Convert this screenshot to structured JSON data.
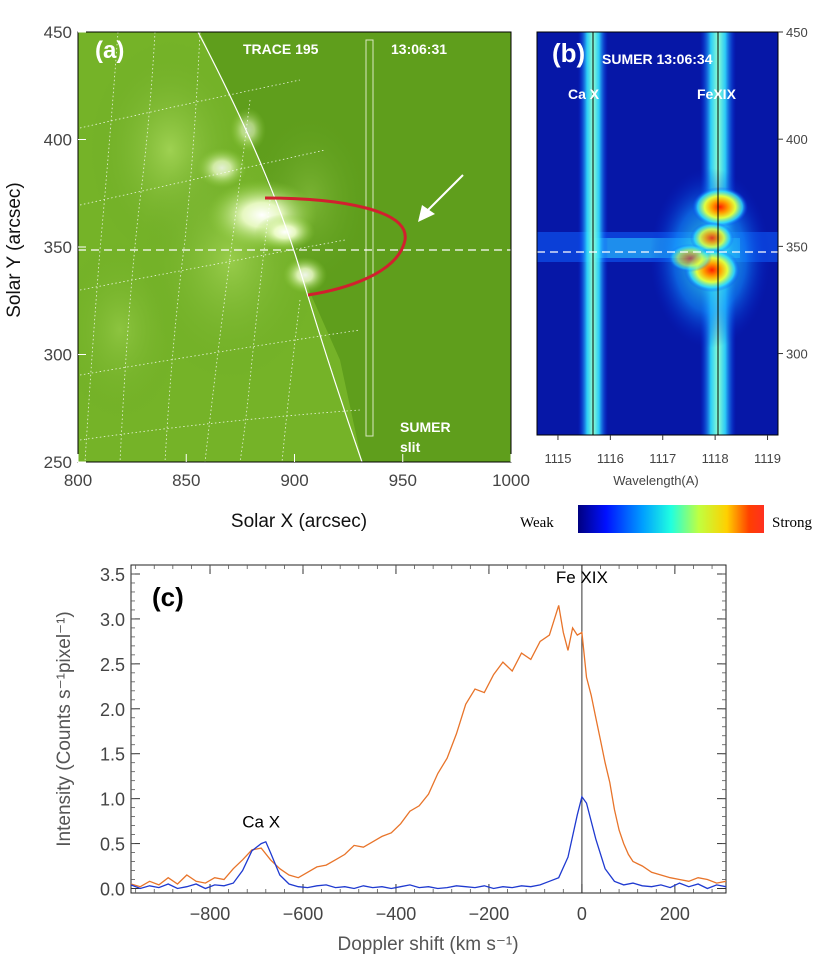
{
  "panel_a": {
    "panel_label": "(a)",
    "instrument": "TRACE 195",
    "time": "13:06:31",
    "slit_label_1": "SUMER",
    "slit_label_2": "slit",
    "xlabel": "Solar X  (arcsec)",
    "ylabel": "Solar Y  (arcsec)",
    "xticks": [
      "800",
      "850",
      "900",
      "950",
      "1000"
    ],
    "yticks": [
      "250",
      "300",
      "350",
      "400",
      "450"
    ],
    "xlim": [
      800,
      1000
    ],
    "ylim": [
      250,
      450
    ],
    "colors": {
      "background": "#5f9e1c",
      "loop": "#d1202e",
      "arrow": "#ffffff"
    }
  },
  "panel_b": {
    "panel_label": "(b)",
    "title": "SUMER 13:06:34",
    "line_left": "Ca X",
    "line_right": "FeXIX",
    "xlabel": "Wavelength(A)",
    "xticks": [
      "1115",
      "1116",
      "1117",
      "1118",
      "1119"
    ],
    "yticks": [
      "300",
      "350",
      "400",
      "450"
    ],
    "colorbar": {
      "low": "Weak",
      "high": "Strong"
    }
  },
  "chart_data": {
    "type": "line",
    "panel_label": "(c)",
    "xlabel": "Doppler shift (km s⁻¹)",
    "ylabel": "Intensity (Counts s⁻¹pixel⁻¹)",
    "xlim": [
      -970,
      310
    ],
    "ylim": [
      -0.05,
      3.6
    ],
    "xticks": [
      -800,
      -600,
      -400,
      -200,
      0,
      200
    ],
    "yticks": [
      0.0,
      0.5,
      1.0,
      1.5,
      2.0,
      2.5,
      3.0,
      3.5
    ],
    "xtick_labels": [
      "−800",
      "−600",
      "−400",
      "−200",
      "0",
      "200"
    ],
    "ytick_labels": [
      "0.0",
      "0.5",
      "1.0",
      "1.5",
      "2.0",
      "2.5",
      "3.0",
      "3.5"
    ],
    "annotations": [
      {
        "text": "Ca X",
        "x": -690,
        "y": 0.68
      },
      {
        "text": "Fe XIX",
        "x": 0,
        "y": 3.4
      }
    ],
    "vline_x": 0,
    "series": [
      {
        "color": "#e8742a",
        "x": [
          -970,
          -950,
          -930,
          -910,
          -890,
          -870,
          -850,
          -830,
          -810,
          -790,
          -770,
          -750,
          -730,
          -710,
          -690,
          -670,
          -650,
          -630,
          -610,
          -590,
          -570,
          -550,
          -530,
          -510,
          -490,
          -470,
          -450,
          -430,
          -410,
          -390,
          -370,
          -350,
          -330,
          -310,
          -290,
          -270,
          -250,
          -230,
          -210,
          -190,
          -170,
          -150,
          -130,
          -110,
          -90,
          -70,
          -50,
          -40,
          -30,
          -20,
          -10,
          0,
          10,
          20,
          30,
          40,
          50,
          60,
          70,
          80,
          90,
          100,
          110,
          130,
          150,
          170,
          190,
          210,
          230,
          250,
          270,
          290,
          310
        ],
        "y": [
          0.05,
          0.02,
          0.08,
          0.04,
          0.12,
          0.05,
          0.15,
          0.08,
          0.06,
          0.12,
          0.1,
          0.22,
          0.32,
          0.43,
          0.45,
          0.32,
          0.22,
          0.15,
          0.12,
          0.18,
          0.24,
          0.26,
          0.32,
          0.38,
          0.48,
          0.46,
          0.52,
          0.58,
          0.62,
          0.72,
          0.86,
          0.92,
          1.05,
          1.28,
          1.45,
          1.72,
          2.05,
          2.22,
          2.18,
          2.38,
          2.52,
          2.42,
          2.62,
          2.55,
          2.75,
          2.82,
          3.15,
          2.85,
          2.65,
          2.9,
          2.82,
          2.85,
          2.35,
          2.15,
          1.9,
          1.65,
          1.4,
          1.18,
          0.88,
          0.65,
          0.5,
          0.38,
          0.3,
          0.25,
          0.18,
          0.15,
          0.12,
          0.1,
          0.08,
          0.12,
          0.1,
          0.06,
          0.08
        ]
      },
      {
        "color": "#1f3ad0",
        "x": [
          -970,
          -950,
          -930,
          -910,
          -890,
          -870,
          -850,
          -830,
          -810,
          -790,
          -770,
          -750,
          -730,
          -710,
          -690,
          -680,
          -670,
          -650,
          -630,
          -610,
          -590,
          -570,
          -550,
          -530,
          -510,
          -490,
          -470,
          -450,
          -430,
          -410,
          -390,
          -370,
          -350,
          -330,
          -310,
          -290,
          -270,
          -250,
          -230,
          -210,
          -190,
          -170,
          -150,
          -130,
          -110,
          -90,
          -70,
          -50,
          -30,
          -10,
          0,
          10,
          30,
          50,
          70,
          90,
          110,
          130,
          150,
          170,
          190,
          210,
          230,
          250,
          270,
          290,
          310
        ],
        "y": [
          0.04,
          0.0,
          0.03,
          0.01,
          0.05,
          0.0,
          0.02,
          0.05,
          0.0,
          0.04,
          0.03,
          0.06,
          0.2,
          0.42,
          0.5,
          0.52,
          0.4,
          0.15,
          0.05,
          0.02,
          0.01,
          0.03,
          0.04,
          0.01,
          0.02,
          0.0,
          0.03,
          0.01,
          0.02,
          0.0,
          0.02,
          0.04,
          0.01,
          0.02,
          0.0,
          0.01,
          0.03,
          0.02,
          0.01,
          0.03,
          0.0,
          0.02,
          0.01,
          0.03,
          0.02,
          0.04,
          0.08,
          0.12,
          0.35,
          0.82,
          1.02,
          0.95,
          0.55,
          0.22,
          0.08,
          0.04,
          0.06,
          0.03,
          0.02,
          0.04,
          0.01,
          0.06,
          0.02,
          0.05,
          0.0,
          0.04,
          0.02
        ]
      }
    ]
  }
}
